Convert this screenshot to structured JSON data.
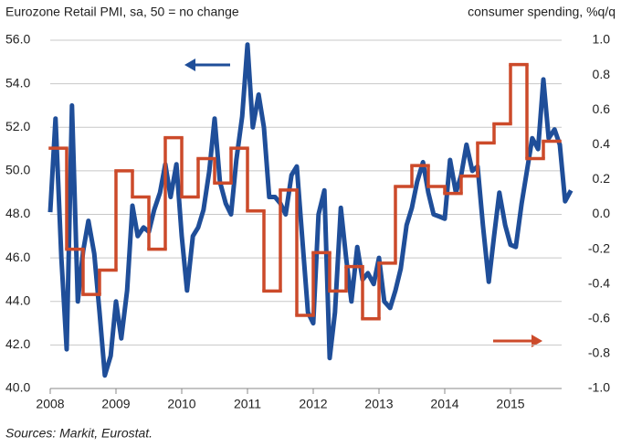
{
  "chart_data": {
    "type": "line",
    "title": "Eurozone Retail PMI, sa, 50 = no change",
    "y2_label": "consumer spending, %q/q",
    "source": "Sources: Markit, Eurostat.",
    "xlim": [
      2008,
      2016
    ],
    "xticks": [
      2008,
      2009,
      2010,
      2011,
      2012,
      2013,
      2014,
      2015
    ],
    "ylim": [
      40,
      56
    ],
    "yticks": [
      {
        "value": 40,
        "label": "40.0"
      },
      {
        "value": 42,
        "label": "42.0"
      },
      {
        "value": 44,
        "label": "44.0"
      },
      {
        "value": 46,
        "label": "46.0"
      },
      {
        "value": 48,
        "label": "48.0"
      },
      {
        "value": 50,
        "label": "50.0"
      },
      {
        "value": 52,
        "label": "52.0"
      },
      {
        "value": 54,
        "label": "54.0"
      },
      {
        "value": 56,
        "label": "56.0"
      }
    ],
    "y2lim": [
      -1,
      1
    ],
    "y2ticks": [
      {
        "value": -1,
        "label": "-1.0"
      },
      {
        "value": -0.8,
        "label": "-0.8"
      },
      {
        "value": -0.6,
        "label": "-0.6"
      },
      {
        "value": -0.4,
        "label": "-0.4"
      },
      {
        "value": -0.2,
        "label": "-0.2"
      },
      {
        "value": 0,
        "label": "0.0"
      },
      {
        "value": 0.2,
        "label": "0.2"
      },
      {
        "value": 0.4,
        "label": "0.4"
      },
      {
        "value": 0.6,
        "label": "0.6"
      },
      {
        "value": 0.8,
        "label": "0.8"
      },
      {
        "value": 1,
        "label": "1.0"
      }
    ],
    "grid": true,
    "series": [
      {
        "color": "#1f4e99",
        "axis": "y",
        "x": [
          2008.0,
          2008.08,
          2008.17,
          2008.25,
          2008.33,
          2008.42,
          2008.5,
          2008.58,
          2008.67,
          2008.75,
          2008.83,
          2008.92,
          2009.0,
          2009.08,
          2009.17,
          2009.25,
          2009.33,
          2009.42,
          2009.5,
          2009.58,
          2009.67,
          2009.75,
          2009.83,
          2009.92,
          2010.0,
          2010.08,
          2010.17,
          2010.25,
          2010.33,
          2010.42,
          2010.5,
          2010.58,
          2010.67,
          2010.75,
          2010.83,
          2010.92,
          2011.0,
          2011.08,
          2011.17,
          2011.25,
          2011.33,
          2011.42,
          2011.5,
          2011.58,
          2011.67,
          2011.75,
          2011.83,
          2011.92,
          2012.0,
          2012.08,
          2012.17,
          2012.25,
          2012.33,
          2012.42,
          2012.5,
          2012.58,
          2012.67,
          2012.75,
          2012.83,
          2012.92,
          2013.0,
          2013.08,
          2013.17,
          2013.25,
          2013.33,
          2013.42,
          2013.5,
          2013.58,
          2013.67,
          2013.75,
          2013.83,
          2013.92,
          2014.0,
          2014.08,
          2014.17,
          2014.25,
          2014.33,
          2014.42,
          2014.5,
          2014.58,
          2014.67,
          2014.75,
          2014.83,
          2014.92,
          2015.0,
          2015.08,
          2015.17,
          2015.25,
          2015.33,
          2015.42,
          2015.5,
          2015.58,
          2015.67,
          2015.75,
          2015.83,
          2015.92
        ],
        "values": [
          48.1,
          52.4,
          46,
          41.8,
          53.0,
          44,
          46.3,
          47.7,
          46.2,
          43.5,
          40.6,
          41.5,
          44.0,
          42.3,
          44.5,
          48.4,
          47.0,
          47.4,
          47.2,
          48.2,
          49.0,
          50.3,
          48.8,
          50.3,
          47.0,
          44.5,
          47.0,
          47.4,
          48.2,
          50.0,
          52.4,
          49.5,
          48.5,
          48.0,
          50.5,
          52.5,
          55.8,
          52.0,
          53.5,
          52.0,
          48.8,
          48.8,
          48.5,
          48.0,
          49.8,
          50.2,
          47.0,
          43.5,
          43.0,
          48.0,
          49.1,
          41.4,
          43.5,
          48.3,
          46.0,
          44.0,
          46.5,
          45.0,
          45.3,
          44.8,
          46.0,
          44.0,
          43.7,
          44.5,
          45.5,
          47.5,
          48.3,
          49.5,
          50.4,
          49.0,
          48.0,
          47.9,
          47.8,
          50.5,
          49.0,
          49.8,
          51.2,
          50.0,
          50.2,
          47.5,
          44.9,
          47.0,
          49.0,
          47.5,
          46.6,
          46.5,
          48.5,
          50.0,
          51.5,
          51.0,
          54.2,
          51.5,
          51.9,
          51.2,
          48.6,
          49.1
        ]
      },
      {
        "color": "#cc4a2a",
        "axis": "y2",
        "step": true,
        "x": [
          2008.0,
          2008.25,
          2008.5,
          2008.75,
          2009.0,
          2009.25,
          2009.5,
          2009.75,
          2010.0,
          2010.25,
          2010.5,
          2010.75,
          2011.0,
          2011.25,
          2011.5,
          2011.75,
          2012.0,
          2012.25,
          2012.5,
          2012.75,
          2013.0,
          2013.25,
          2013.5,
          2013.75,
          2014.0,
          2014.25,
          2014.5,
          2014.75,
          2015.0,
          2015.25,
          2015.5
        ],
        "values": [
          0.38,
          -0.2,
          -0.46,
          -0.32,
          0.25,
          0.1,
          -0.2,
          0.44,
          0.1,
          0.32,
          0.18,
          0.38,
          0.02,
          -0.44,
          0.14,
          -0.58,
          -0.22,
          -0.44,
          -0.3,
          -0.6,
          -0.28,
          0.16,
          0.28,
          0.16,
          0.12,
          0.22,
          0.41,
          0.52,
          0.86,
          0.32,
          0.42
        ]
      }
    ]
  }
}
